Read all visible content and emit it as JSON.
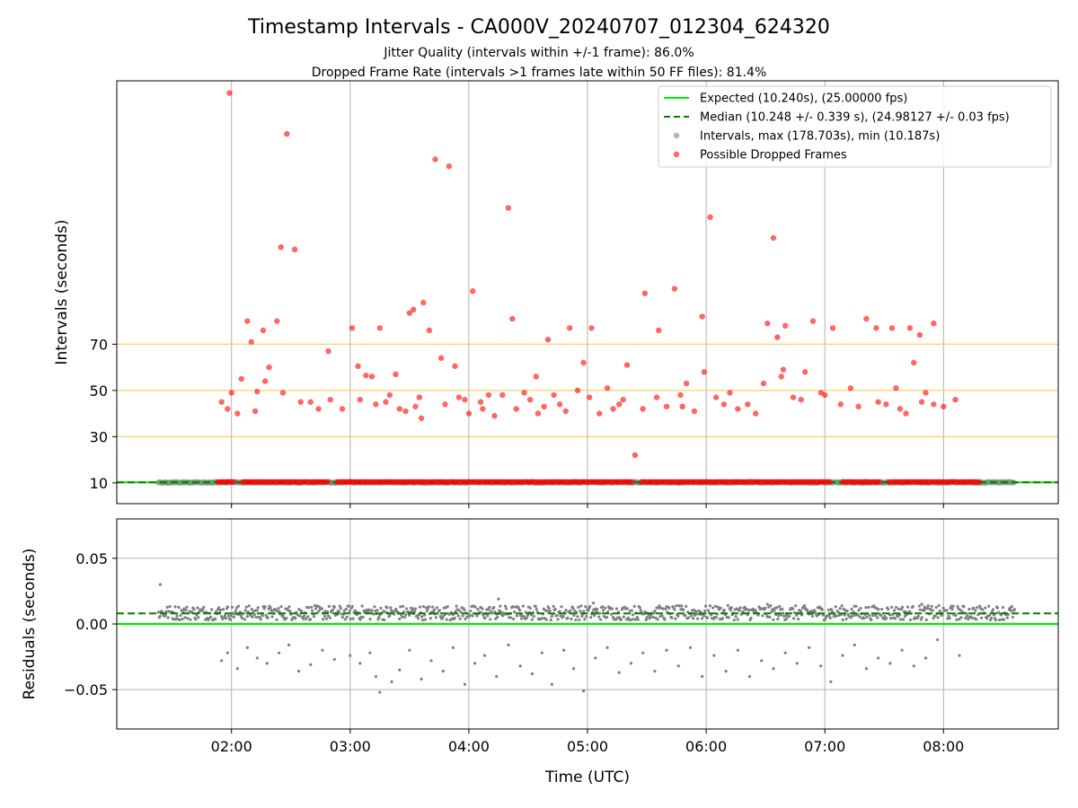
{
  "title": "Timestamp Intervals - CA000V_20240707_012304_624320",
  "subtitle_lines": [
    "Jitter Quality (intervals within +/-1 frame): 86.0%",
    "Dropped Frame Rate (intervals >1 frames late within 50 FF files): 81.4%"
  ],
  "colors": {
    "expected": "#00ee00",
    "median": "#008000",
    "intervals": "#808080",
    "dropped": "#ff0000",
    "threshold": "#ffc040",
    "grid": "#b0b0b0"
  },
  "chart_data": [
    {
      "type": "scatter",
      "id": "intervals",
      "xlabel": "",
      "ylabel": "Intervals (seconds)",
      "xlim": [
        "01:02",
        "08:58"
      ],
      "ylim": [
        1,
        184
      ],
      "yticks": [
        10,
        30,
        50,
        70
      ],
      "xticks": [
        "02:00",
        "03:00",
        "04:00",
        "05:00",
        "06:00",
        "07:00",
        "08:00"
      ],
      "grid": "vertical",
      "threshold_lines": [
        10,
        30,
        50,
        70
      ],
      "expected_line": 10.24,
      "median_line": 10.248,
      "legend_position": "top-right",
      "legend": [
        "Expected (10.240s), (25.00000 fps)",
        "Median (10.248 +/- 0.339 s), (24.98127 +/- 0.03 fps)",
        "Intervals, max (178.703s), min (10.187s)",
        "Possible Dropped Frames"
      ],
      "series": [
        {
          "name": "Intervals, max (178.703s), min (10.187s)",
          "x_range": [
            "01:23",
            "08:36"
          ],
          "y": 10.2
        },
        {
          "name": "Possible Dropped Frames",
          "low_x_range": [
            "01:53",
            "08:19"
          ],
          "low_y": 10.4,
          "points": [
            [
              "01:59",
              178.7
            ],
            [
              "02:28",
              161.0
            ],
            [
              "03:43",
              150.0
            ],
            [
              "03:50",
              147.0
            ],
            [
              "04:20",
              129.0
            ],
            [
              "06:02",
              125.0
            ],
            [
              "06:34",
              116.0
            ],
            [
              "02:25",
              112.0
            ],
            [
              "02:32",
              111.0
            ],
            [
              "04:02",
              93.0
            ],
            [
              "05:29",
              92.0
            ],
            [
              "05:44",
              94.0
            ],
            [
              "03:37",
              88.0
            ],
            [
              "03:32",
              85.0
            ],
            [
              "03:30",
              83.5
            ],
            [
              "05:58",
              82.0
            ],
            [
              "04:22",
              81.0
            ],
            [
              "02:08",
              80.0
            ],
            [
              "02:23",
              80.0
            ],
            [
              "06:54",
              80.0
            ],
            [
              "06:31",
              79.0
            ],
            [
              "07:21",
              81.0
            ],
            [
              "07:55",
              79.0
            ],
            [
              "06:40",
              78.0
            ],
            [
              "03:01",
              77.0
            ],
            [
              "03:15",
              77.0
            ],
            [
              "04:51",
              77.0
            ],
            [
              "05:02",
              77.0
            ],
            [
              "05:36",
              76.0
            ],
            [
              "07:04",
              77.0
            ],
            [
              "07:26",
              77.0
            ],
            [
              "07:34",
              77.0
            ],
            [
              "07:43",
              77.0
            ],
            [
              "02:16",
              76.0
            ],
            [
              "03:40",
              76.0
            ],
            [
              "07:48",
              74.0
            ],
            [
              "02:10",
              71.0
            ],
            [
              "04:40",
              72.0
            ],
            [
              "06:36",
              73.0
            ],
            [
              "02:49",
              67.0
            ],
            [
              "03:46",
              64.0
            ],
            [
              "04:58",
              62.0
            ],
            [
              "05:20",
              61.0
            ],
            [
              "07:45",
              62.0
            ],
            [
              "03:04",
              60.5
            ],
            [
              "03:53",
              60.5
            ],
            [
              "02:19",
              60.0
            ],
            [
              "05:59",
              58.0
            ],
            [
              "06:39",
              59.0
            ],
            [
              "06:50",
              58.0
            ],
            [
              "03:23",
              57.0
            ],
            [
              "03:08",
              56.5
            ],
            [
              "03:11",
              56.0
            ],
            [
              "04:34",
              56.0
            ],
            [
              "06:38",
              56.0
            ],
            [
              "02:05",
              55.0
            ],
            [
              "02:17",
              54.0
            ],
            [
              "06:29",
              53.0
            ],
            [
              "05:50",
              53.0
            ],
            [
              "07:13",
              51.0
            ],
            [
              "07:36",
              51.0
            ],
            [
              "05:10",
              51.0
            ],
            [
              "04:55",
              50.0
            ],
            [
              "02:00",
              49.0
            ],
            [
              "02:13",
              49.5
            ],
            [
              "02:26",
              49.0
            ],
            [
              "06:12",
              49.0
            ],
            [
              "05:47",
              48.0
            ],
            [
              "06:58",
              49.0
            ],
            [
              "07:51",
              49.0
            ],
            [
              "07:00",
              48.0
            ],
            [
              "04:43",
              48.0
            ],
            [
              "04:10",
              48.0
            ],
            [
              "03:20",
              48.0
            ],
            [
              "04:28",
              49.0
            ],
            [
              "05:35",
              47.0
            ],
            [
              "06:44",
              47.0
            ],
            [
              "03:35",
              47.0
            ],
            [
              "04:46",
              44.0
            ],
            [
              "04:06",
              45.0
            ],
            [
              "02:40",
              45.0
            ],
            [
              "03:58",
              46.0
            ],
            [
              "05:16",
              44.0
            ],
            [
              "06:21",
              44.0
            ],
            [
              "07:31",
              44.0
            ],
            [
              "02:56",
              42.0
            ],
            [
              "03:28",
              41.0
            ],
            [
              "04:35",
              40.0
            ],
            [
              "05:13",
              42.0
            ],
            [
              "05:48",
              43.0
            ],
            [
              "06:09",
              44.0
            ],
            [
              "07:17",
              43.0
            ],
            [
              "07:41",
              40.0
            ],
            [
              "07:55",
              44.0
            ],
            [
              "08:06",
              46.0
            ],
            [
              "05:24",
              22.0
            ],
            [
              "01:55",
              45.0
            ],
            [
              "01:58",
              42.0
            ],
            [
              "02:03",
              40.0
            ],
            [
              "02:12",
              41.0
            ],
            [
              "02:35",
              45.0
            ],
            [
              "02:44",
              42.0
            ],
            [
              "02:50",
              46.0
            ],
            [
              "03:05",
              46.0
            ],
            [
              "03:13",
              44.0
            ],
            [
              "03:18",
              45.0
            ],
            [
              "03:25",
              42.0
            ],
            [
              "03:33",
              43.0
            ],
            [
              "03:36",
              38.0
            ],
            [
              "03:48",
              44.0
            ],
            [
              "03:55",
              47.0
            ],
            [
              "04:00",
              40.0
            ],
            [
              "04:07",
              42.0
            ],
            [
              "04:13",
              39.0
            ],
            [
              "04:17",
              48.0
            ],
            [
              "04:24",
              42.0
            ],
            [
              "04:31",
              46.0
            ],
            [
              "04:38",
              43.0
            ],
            [
              "04:49",
              41.0
            ],
            [
              "05:01",
              47.0
            ],
            [
              "05:06",
              40.0
            ],
            [
              "05:18",
              46.0
            ],
            [
              "05:28",
              42.0
            ],
            [
              "05:40",
              43.0
            ],
            [
              "05:54",
              41.0
            ],
            [
              "06:05",
              47.0
            ],
            [
              "06:16",
              42.0
            ],
            [
              "06:25",
              40.0
            ],
            [
              "06:48",
              46.0
            ],
            [
              "07:08",
              44.0
            ],
            [
              "07:27",
              45.0
            ],
            [
              "07:38",
              42.0
            ],
            [
              "07:49",
              45.0
            ],
            [
              "08:00",
              43.0
            ]
          ]
        }
      ]
    },
    {
      "type": "scatter",
      "id": "residuals",
      "xlabel": "Time (UTC)",
      "ylabel": "Residuals (seconds)",
      "xlim": [
        "01:02",
        "08:58"
      ],
      "ylim": [
        -0.08,
        0.08
      ],
      "yticks": [
        -0.05,
        0.0,
        0.05
      ],
      "ytick_labels": [
        "−0.05",
        "0.00",
        "0.05"
      ],
      "xticks": [
        "02:00",
        "03:00",
        "04:00",
        "05:00",
        "06:00",
        "07:00",
        "08:00"
      ],
      "grid": "both",
      "expected_line": 0.0,
      "median_line": 0.008,
      "series": [
        {
          "name": "",
          "x_range": [
            "01:23",
            "08:36"
          ],
          "band": [
            0.003,
            0.014
          ],
          "outliers": [
            [
              "01:24",
              0.03
            ],
            [
              "01:55",
              -0.028
            ],
            [
              "01:58",
              -0.022
            ],
            [
              "02:03",
              -0.034
            ],
            [
              "02:08",
              -0.018
            ],
            [
              "02:13",
              -0.026
            ],
            [
              "02:18",
              -0.03
            ],
            [
              "02:24",
              -0.022
            ],
            [
              "02:29",
              -0.016
            ],
            [
              "02:34",
              -0.036
            ],
            [
              "02:40",
              -0.031
            ],
            [
              "02:46",
              -0.02
            ],
            [
              "02:52",
              -0.027
            ],
            [
              "03:00",
              -0.024
            ],
            [
              "03:05",
              -0.03
            ],
            [
              "03:10",
              -0.022
            ],
            [
              "03:13",
              -0.04
            ],
            [
              "03:15",
              -0.052
            ],
            [
              "03:21",
              -0.044
            ],
            [
              "03:25",
              -0.035
            ],
            [
              "03:30",
              -0.02
            ],
            [
              "03:36",
              -0.042
            ],
            [
              "03:41",
              -0.028
            ],
            [
              "03:47",
              -0.036
            ],
            [
              "03:52",
              -0.018
            ],
            [
              "03:58",
              -0.046
            ],
            [
              "04:03",
              -0.03
            ],
            [
              "04:08",
              -0.024
            ],
            [
              "04:14",
              -0.04
            ],
            [
              "04:20",
              -0.016
            ],
            [
              "04:26",
              -0.032
            ],
            [
              "04:32",
              -0.038
            ],
            [
              "04:37",
              -0.022
            ],
            [
              "04:42",
              -0.046
            ],
            [
              "04:48",
              -0.02
            ],
            [
              "04:53",
              -0.034
            ],
            [
              "04:58",
              -0.051
            ],
            [
              "05:04",
              -0.026
            ],
            [
              "05:10",
              -0.018
            ],
            [
              "05:16",
              -0.037
            ],
            [
              "05:22",
              -0.03
            ],
            [
              "05:28",
              -0.022
            ],
            [
              "05:34",
              -0.036
            ],
            [
              "05:40",
              -0.02
            ],
            [
              "05:46",
              -0.032
            ],
            [
              "05:52",
              -0.018
            ],
            [
              "05:58",
              -0.04
            ],
            [
              "06:04",
              -0.024
            ],
            [
              "06:10",
              -0.036
            ],
            [
              "06:16",
              -0.02
            ],
            [
              "06:22",
              -0.04
            ],
            [
              "06:28",
              -0.028
            ],
            [
              "06:34",
              -0.034
            ],
            [
              "06:40",
              -0.022
            ],
            [
              "06:46",
              -0.03
            ],
            [
              "06:52",
              -0.018
            ],
            [
              "06:58",
              -0.032
            ],
            [
              "07:03",
              -0.044
            ],
            [
              "07:09",
              -0.024
            ],
            [
              "07:15",
              -0.016
            ],
            [
              "07:21",
              -0.034
            ],
            [
              "07:27",
              -0.026
            ],
            [
              "07:33",
              -0.03
            ],
            [
              "07:39",
              -0.02
            ],
            [
              "07:45",
              -0.032
            ],
            [
              "07:51",
              -0.026
            ],
            [
              "07:57",
              -0.012
            ],
            [
              "08:08",
              -0.024
            ],
            [
              "04:15",
              0.019
            ],
            [
              "05:03",
              0.016
            ],
            [
              "06:31",
              0.015
            ],
            [
              "07:49",
              0.015
            ]
          ]
        }
      ]
    }
  ]
}
